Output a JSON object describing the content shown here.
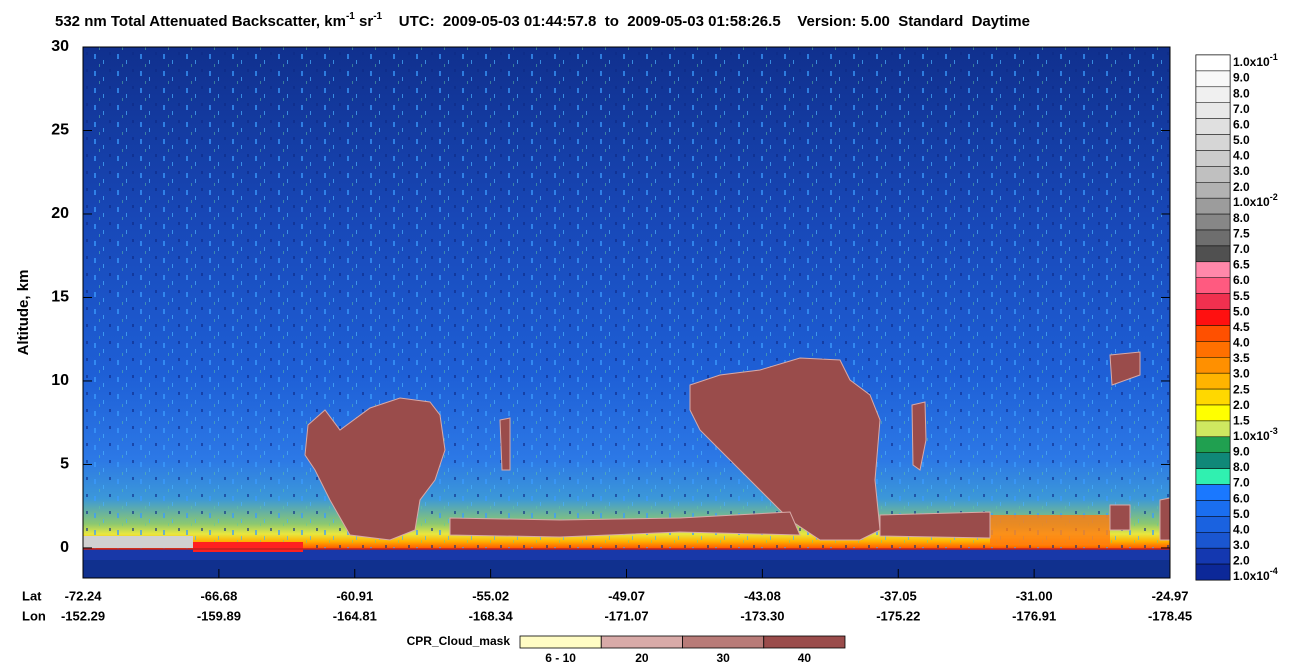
{
  "chart_data": {
    "type": "curtain",
    "title": [
      {
        "text": "532 nm Total Attenuated Backscatter, km"
      },
      {
        "sup": "-1"
      },
      {
        "text": " sr"
      },
      {
        "sup": "-1"
      },
      {
        "text": "    UTC:  2009-05-03 01:44:57.8  to  2009-05-03 01:58:26.5    Version: 5.00  Standard  Daytime"
      }
    ],
    "ylabel": "Altitude, km",
    "ylim": [
      -1.8,
      30
    ],
    "yticks": [
      0,
      5,
      10,
      15,
      20,
      25,
      30
    ],
    "x_label_lat": "Lat",
    "x_label_lon": "Lon",
    "xticks": [
      {
        "lat": "-72.24",
        "lon": "-152.29"
      },
      {
        "lat": "-66.68",
        "lon": "-159.89"
      },
      {
        "lat": "-60.91",
        "lon": "-164.81"
      },
      {
        "lat": "-55.02",
        "lon": "-168.34"
      },
      {
        "lat": "-49.07",
        "lon": "-171.07"
      },
      {
        "lat": "-43.08",
        "lon": "-173.30"
      },
      {
        "lat": "-37.05",
        "lon": "-175.22"
      },
      {
        "lat": "-31.00",
        "lon": "-176.91"
      },
      {
        "lat": "-24.97",
        "lon": "-178.45"
      }
    ],
    "colorbar": {
      "labels": [
        {
          "text": "1.0x10",
          "sup": "-1"
        },
        "9.0",
        "8.0",
        "7.0",
        "6.0",
        "5.0",
        "4.0",
        "3.0",
        "2.0",
        {
          "text": "1.0x10",
          "sup": "-2"
        },
        "8.0",
        "7.5",
        "7.0",
        "6.5",
        "6.0",
        "5.5",
        "5.0",
        "4.5",
        "4.0",
        "3.5",
        "3.0",
        "2.5",
        "2.0",
        "1.5",
        {
          "text": "1.0x10",
          "sup": "-3"
        },
        "9.0",
        "8.0",
        "7.0",
        "6.0",
        "5.0",
        "4.0",
        "3.0",
        "2.0",
        {
          "text": "1.0x10",
          "sup": "-4"
        }
      ],
      "colors": [
        "#ffffff",
        "#f8f8f8",
        "#f0f0f0",
        "#e8e8e8",
        "#e0e0e0",
        "#d6d6d6",
        "#cccccc",
        "#c0c0c0",
        "#b2b2b2",
        "#9c9c9c",
        "#878787",
        "#6e6e6e",
        "#505050",
        "#ff88aa",
        "#ff5a80",
        "#f0304f",
        "#ff1010",
        "#ff5000",
        "#ff7000",
        "#ff9000",
        "#ffb400",
        "#ffd800",
        "#ffff00",
        "#cfe860",
        "#20a050",
        "#108878",
        "#30f0b0",
        "#1a78ff",
        "#1a6ef0",
        "#1a62e0",
        "#1a56d0",
        "#1438b0",
        "#0c2898"
      ]
    },
    "cpr_legend": {
      "label": "CPR_Cloud_mask",
      "categories": [
        "6 - 10",
        "20",
        "30",
        "40"
      ],
      "colors": [
        "#fffcc4",
        "#d8aaa8",
        "#b87b78",
        "#9a4c4b"
      ]
    }
  }
}
